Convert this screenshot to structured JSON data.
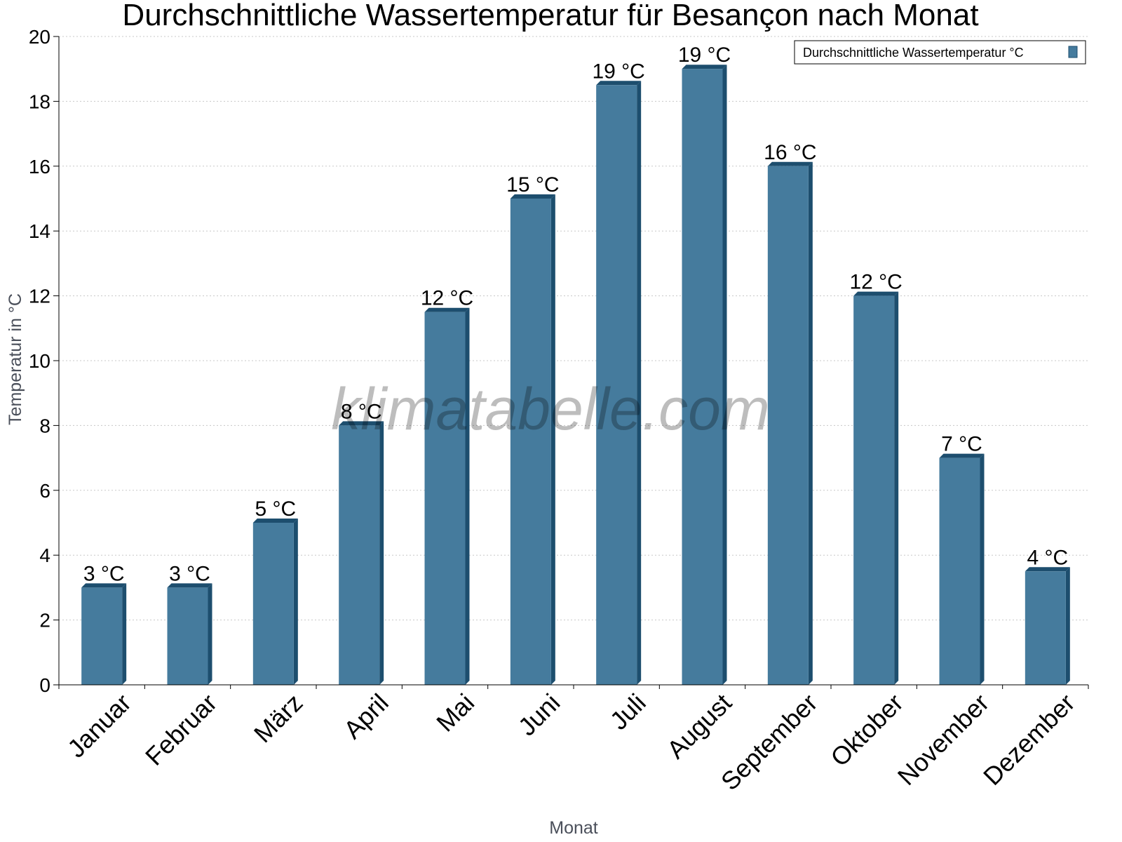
{
  "chart_data": {
    "type": "bar",
    "title": "Durchschnittliche Wassertemperatur für Besançon nach Monat",
    "xlabel": "Monat",
    "ylabel": "Temperatur in °C",
    "categories": [
      "Januar",
      "Februar",
      "März",
      "April",
      "Mai",
      "Juni",
      "Juli",
      "August",
      "September",
      "Oktober",
      "November",
      "Dezember"
    ],
    "series": [
      {
        "name": "Durchschnittliche Wassertemperatur °C",
        "values": [
          3,
          3,
          5,
          8,
          11.5,
          15,
          18.5,
          19,
          16,
          12,
          7,
          3.5
        ],
        "labels": [
          "3 °C",
          "3 °C",
          "5 °C",
          "8 °C",
          "12 °C",
          "15 °C",
          "19 °C",
          "19 °C",
          "16 °C",
          "12 °C",
          "7 °C",
          "4 °C"
        ]
      }
    ],
    "ylim": [
      0,
      20
    ],
    "yticks": [
      0,
      2,
      4,
      6,
      8,
      10,
      12,
      14,
      16,
      18,
      20
    ],
    "grid": true,
    "legend_position": "top-right",
    "watermark": "klimatabelle.com",
    "colors": {
      "bar": "#457b9d",
      "bar_edge": "#1d4e6e",
      "grid": "#c8c8c8",
      "axis": "#000000"
    }
  }
}
